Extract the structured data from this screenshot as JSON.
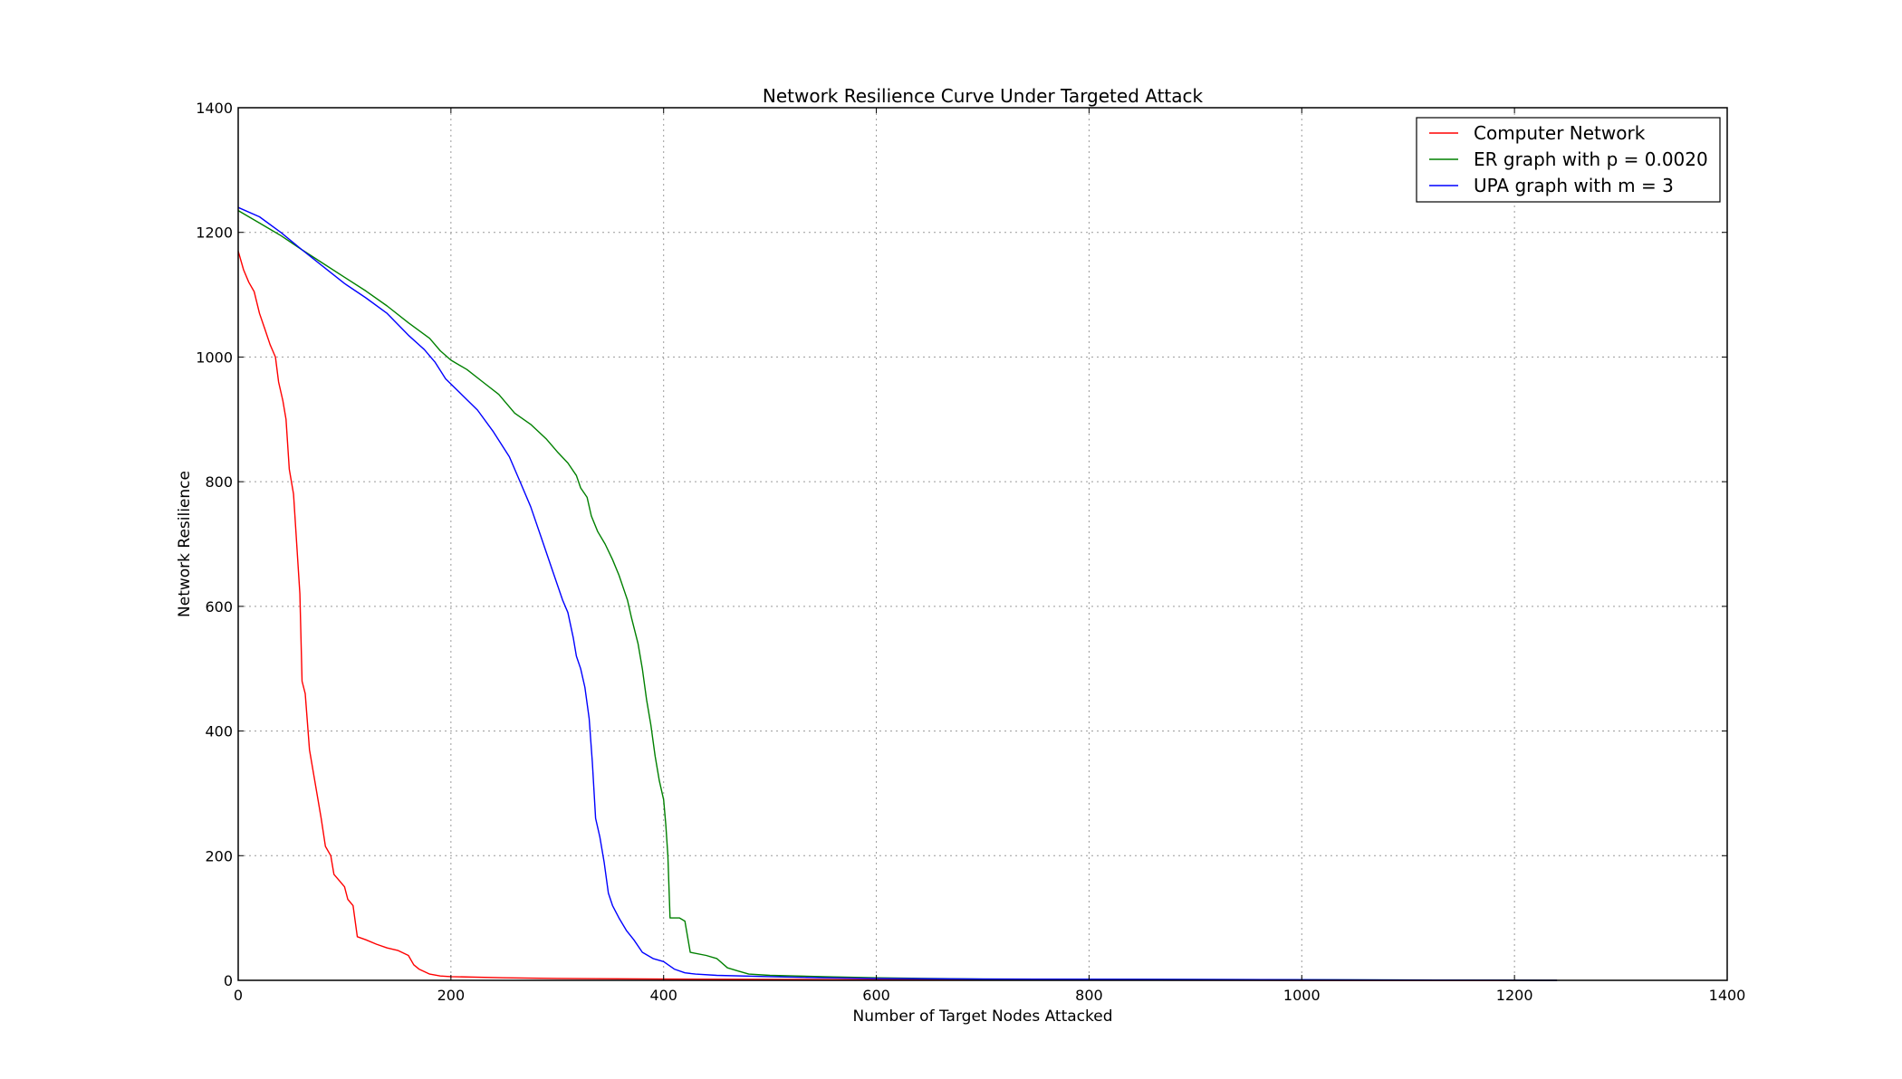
{
  "chart_data": {
    "type": "line",
    "title": "Network Resilience Curve Under Targeted Attack",
    "xlabel": "Number of Target Nodes Attacked",
    "ylabel": "Network Resilience",
    "xlim": [
      0,
      1400
    ],
    "ylim": [
      0,
      1400
    ],
    "xticks": [
      "0",
      "200",
      "400",
      "600",
      "800",
      "1000",
      "1200",
      "1400"
    ],
    "yticks": [
      "0",
      "200",
      "400",
      "600",
      "800",
      "1000",
      "1200",
      "1400"
    ],
    "grid": true,
    "legend_position": "top-right",
    "series": [
      {
        "name": "Computer Network",
        "color": "#ff0000",
        "points": [
          [
            0,
            1170
          ],
          [
            5,
            1140
          ],
          [
            10,
            1120
          ],
          [
            15,
            1105
          ],
          [
            20,
            1070
          ],
          [
            25,
            1045
          ],
          [
            30,
            1020
          ],
          [
            35,
            1000
          ],
          [
            38,
            960
          ],
          [
            42,
            930
          ],
          [
            45,
            900
          ],
          [
            48,
            820
          ],
          [
            52,
            780
          ],
          [
            55,
            700
          ],
          [
            58,
            620
          ],
          [
            60,
            480
          ],
          [
            63,
            460
          ],
          [
            67,
            370
          ],
          [
            70,
            340
          ],
          [
            74,
            300
          ],
          [
            78,
            260
          ],
          [
            82,
            215
          ],
          [
            87,
            200
          ],
          [
            90,
            170
          ],
          [
            95,
            160
          ],
          [
            100,
            150
          ],
          [
            103,
            130
          ],
          [
            108,
            120
          ],
          [
            112,
            70
          ],
          [
            120,
            65
          ],
          [
            130,
            58
          ],
          [
            140,
            52
          ],
          [
            150,
            48
          ],
          [
            160,
            40
          ],
          [
            165,
            25
          ],
          [
            170,
            18
          ],
          [
            180,
            10
          ],
          [
            190,
            7
          ],
          [
            200,
            6
          ],
          [
            250,
            4
          ],
          [
            300,
            3
          ],
          [
            400,
            2
          ],
          [
            600,
            1
          ],
          [
            1000,
            0
          ],
          [
            1240,
            0
          ]
        ]
      },
      {
        "name": "ER graph with p = 0.0020",
        "color": "#008000",
        "points": [
          [
            0,
            1235
          ],
          [
            20,
            1215
          ],
          [
            40,
            1195
          ],
          [
            60,
            1172
          ],
          [
            80,
            1150
          ],
          [
            100,
            1128
          ],
          [
            120,
            1106
          ],
          [
            140,
            1082
          ],
          [
            160,
            1055
          ],
          [
            180,
            1030
          ],
          [
            190,
            1010
          ],
          [
            200,
            995
          ],
          [
            215,
            980
          ],
          [
            230,
            960
          ],
          [
            245,
            940
          ],
          [
            260,
            910
          ],
          [
            275,
            892
          ],
          [
            290,
            868
          ],
          [
            300,
            848
          ],
          [
            310,
            830
          ],
          [
            318,
            810
          ],
          [
            322,
            790
          ],
          [
            328,
            775
          ],
          [
            332,
            745
          ],
          [
            338,
            720
          ],
          [
            345,
            700
          ],
          [
            352,
            675
          ],
          [
            358,
            650
          ],
          [
            362,
            630
          ],
          [
            366,
            610
          ],
          [
            370,
            580
          ],
          [
            376,
            540
          ],
          [
            380,
            500
          ],
          [
            384,
            450
          ],
          [
            388,
            410
          ],
          [
            392,
            360
          ],
          [
            396,
            320
          ],
          [
            400,
            290
          ],
          [
            402,
            250
          ],
          [
            404,
            200
          ],
          [
            406,
            100
          ],
          [
            415,
            100
          ],
          [
            420,
            95
          ],
          [
            425,
            45
          ],
          [
            440,
            40
          ],
          [
            450,
            35
          ],
          [
            460,
            20
          ],
          [
            470,
            15
          ],
          [
            480,
            10
          ],
          [
            500,
            8
          ],
          [
            550,
            6
          ],
          [
            600,
            4
          ],
          [
            700,
            2
          ],
          [
            1000,
            1
          ],
          [
            1240,
            0
          ]
        ]
      },
      {
        "name": "UPA graph with m = 3",
        "color": "#0000ff",
        "points": [
          [
            0,
            1240
          ],
          [
            20,
            1225
          ],
          [
            40,
            1200
          ],
          [
            60,
            1172
          ],
          [
            80,
            1145
          ],
          [
            100,
            1118
          ],
          [
            120,
            1095
          ],
          [
            140,
            1070
          ],
          [
            160,
            1035
          ],
          [
            175,
            1012
          ],
          [
            185,
            992
          ],
          [
            195,
            965
          ],
          [
            210,
            940
          ],
          [
            225,
            915
          ],
          [
            240,
            880
          ],
          [
            255,
            840
          ],
          [
            265,
            800
          ],
          [
            275,
            760
          ],
          [
            285,
            710
          ],
          [
            295,
            660
          ],
          [
            305,
            610
          ],
          [
            310,
            590
          ],
          [
            315,
            550
          ],
          [
            318,
            520
          ],
          [
            322,
            500
          ],
          [
            326,
            470
          ],
          [
            330,
            420
          ],
          [
            333,
            350
          ],
          [
            336,
            260
          ],
          [
            340,
            230
          ],
          [
            344,
            190
          ],
          [
            348,
            140
          ],
          [
            352,
            120
          ],
          [
            358,
            100
          ],
          [
            365,
            80
          ],
          [
            372,
            65
          ],
          [
            380,
            45
          ],
          [
            390,
            35
          ],
          [
            400,
            30
          ],
          [
            410,
            18
          ],
          [
            420,
            12
          ],
          [
            430,
            10
          ],
          [
            450,
            8
          ],
          [
            500,
            6
          ],
          [
            550,
            4
          ],
          [
            600,
            3
          ],
          [
            700,
            2
          ],
          [
            1000,
            1
          ],
          [
            1240,
            0
          ]
        ]
      }
    ]
  }
}
